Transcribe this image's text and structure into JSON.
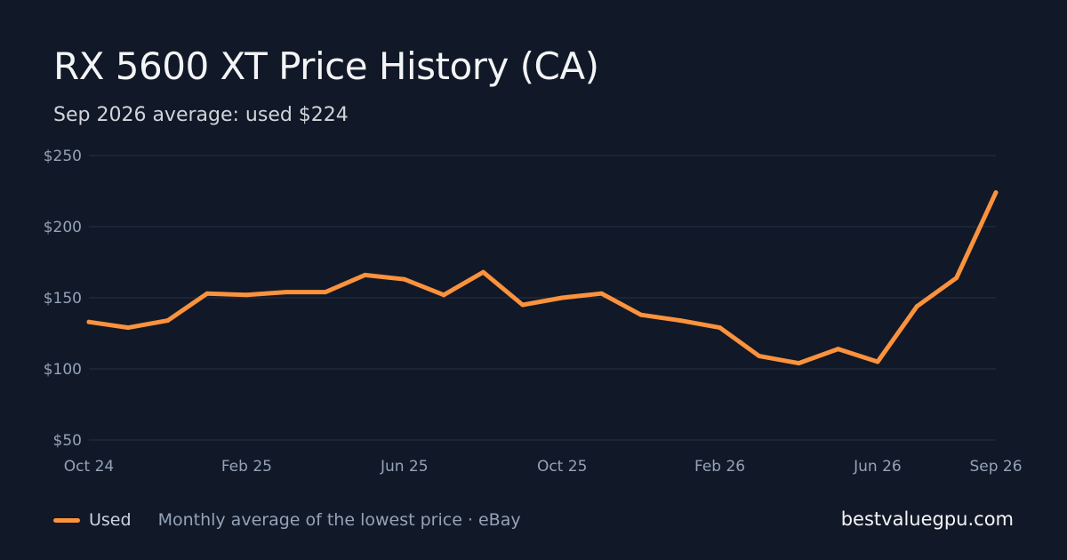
{
  "colors": {
    "background": "#111827",
    "line": "#fb923c",
    "grid": "#273244",
    "tick_text": "#94a3b8"
  },
  "chart_data": {
    "type": "line",
    "title": "RX 5600 XT Price History (CA)",
    "subtitle": "Sep 2026 average: used $224",
    "xlabel": "",
    "ylabel": "",
    "ylim": [
      50,
      250
    ],
    "y_ticks": [
      250,
      200,
      150,
      100,
      50
    ],
    "y_tick_labels": [
      "$250",
      "$200",
      "$150",
      "$100",
      "$50"
    ],
    "x_tick_labels": [
      {
        "label": "Oct 24",
        "x": "2024-10"
      },
      {
        "label": "Feb 25",
        "x": "2025-02"
      },
      {
        "label": "Jun 25",
        "x": "2025-06"
      },
      {
        "label": "Oct 25",
        "x": "2025-10"
      },
      {
        "label": "Feb 26",
        "x": "2026-02"
      },
      {
        "label": "Jun 26",
        "x": "2026-06"
      },
      {
        "label": "Sep 26",
        "x": "2026-09"
      }
    ],
    "x": [
      "2024-10",
      "2024-11",
      "2024-12",
      "2025-01",
      "2025-02",
      "2025-03",
      "2025-04",
      "2025-05",
      "2025-06",
      "2025-07",
      "2025-08",
      "2025-09",
      "2025-10",
      "2025-11",
      "2025-12",
      "2026-01",
      "2026-02",
      "2026-03",
      "2026-04",
      "2026-05",
      "2026-06",
      "2026-07",
      "2026-08",
      "2026-09"
    ],
    "series": [
      {
        "name": "Used",
        "color": "#fb923c",
        "values": [
          133,
          129,
          134,
          153,
          152,
          154,
          154,
          166,
          163,
          152,
          168,
          145,
          150,
          153,
          138,
          134,
          129,
          109,
          104,
          114,
          105,
          144,
          164,
          224
        ]
      }
    ],
    "grid": true,
    "legend_position": "bottom-left"
  },
  "footer": {
    "legend_label": "Used",
    "source_note": "Monthly average of the lowest price · eBay",
    "site": "bestvaluegpu.com"
  }
}
